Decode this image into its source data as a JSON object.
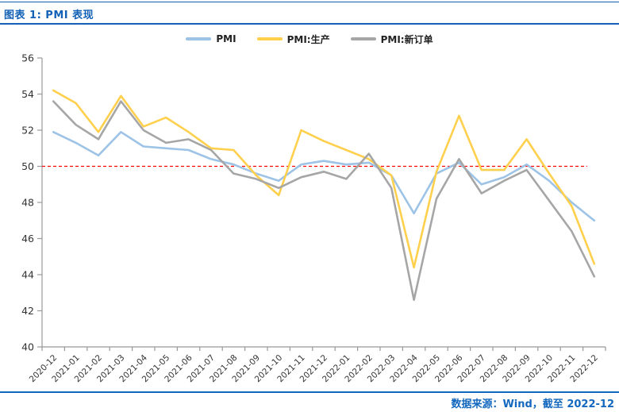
{
  "header": {
    "title": "图表 1: PMI 表现"
  },
  "legend": [
    {
      "label": "PMI",
      "color": "#9DC3E6"
    },
    {
      "label": "PMI:生产",
      "color": "#FFD04D"
    },
    {
      "label": "PMI:新订单",
      "color": "#A6A6A6"
    }
  ],
  "footer": {
    "source": "数据来源：Wind，截至 2022-12"
  },
  "colors": {
    "accent_blue": "#1261B6",
    "footer_blue": "#1268BE",
    "axis": "#999999",
    "tick_text": "#333333",
    "reference_red": "#FF0000"
  },
  "chart_data": {
    "type": "line",
    "title": "PMI 表现",
    "xlabel": "",
    "ylabel": "",
    "ylim": [
      40,
      56
    ],
    "yticks": [
      40,
      42,
      44,
      46,
      48,
      50,
      52,
      54,
      56
    ],
    "grid": false,
    "legend_position": "top",
    "reference_line": {
      "value": 50,
      "color": "#FF0000",
      "style": "dashed"
    },
    "categories": [
      "2020-12",
      "2021-01",
      "2021-02",
      "2021-03",
      "2021-04",
      "2021-05",
      "2021-06",
      "2021-07",
      "2021-08",
      "2021-09",
      "2021-10",
      "2021-11",
      "2021-12",
      "2022-01",
      "2022-02",
      "2022-03",
      "2022-04",
      "2022-05",
      "2022-06",
      "2022-07",
      "2022-08",
      "2022-09",
      "2022-10",
      "2022-11",
      "2022-12"
    ],
    "series": [
      {
        "name": "PMI",
        "color": "#9DC3E6",
        "values": [
          51.9,
          51.3,
          50.6,
          51.9,
          51.1,
          51.0,
          50.9,
          50.4,
          50.1,
          49.6,
          49.2,
          50.1,
          50.3,
          50.1,
          50.2,
          49.5,
          47.4,
          49.6,
          50.2,
          49.0,
          49.4,
          50.1,
          49.2,
          48.0,
          47.0
        ]
      },
      {
        "name": "PMI:生产",
        "color": "#FFD04D",
        "values": [
          54.2,
          53.5,
          51.9,
          53.9,
          52.2,
          52.7,
          51.9,
          51.0,
          50.9,
          49.5,
          48.4,
          52.0,
          51.4,
          50.9,
          50.4,
          49.5,
          44.4,
          49.7,
          52.8,
          49.8,
          49.8,
          51.5,
          49.6,
          47.8,
          44.6
        ]
      },
      {
        "name": "PMI:新订单",
        "color": "#A6A6A6",
        "values": [
          53.6,
          52.3,
          51.5,
          53.6,
          52.0,
          51.3,
          51.5,
          50.9,
          49.6,
          49.3,
          48.8,
          49.4,
          49.7,
          49.3,
          50.7,
          48.8,
          42.6,
          48.2,
          50.4,
          48.5,
          49.2,
          49.8,
          48.1,
          46.4,
          43.9
        ]
      }
    ]
  }
}
